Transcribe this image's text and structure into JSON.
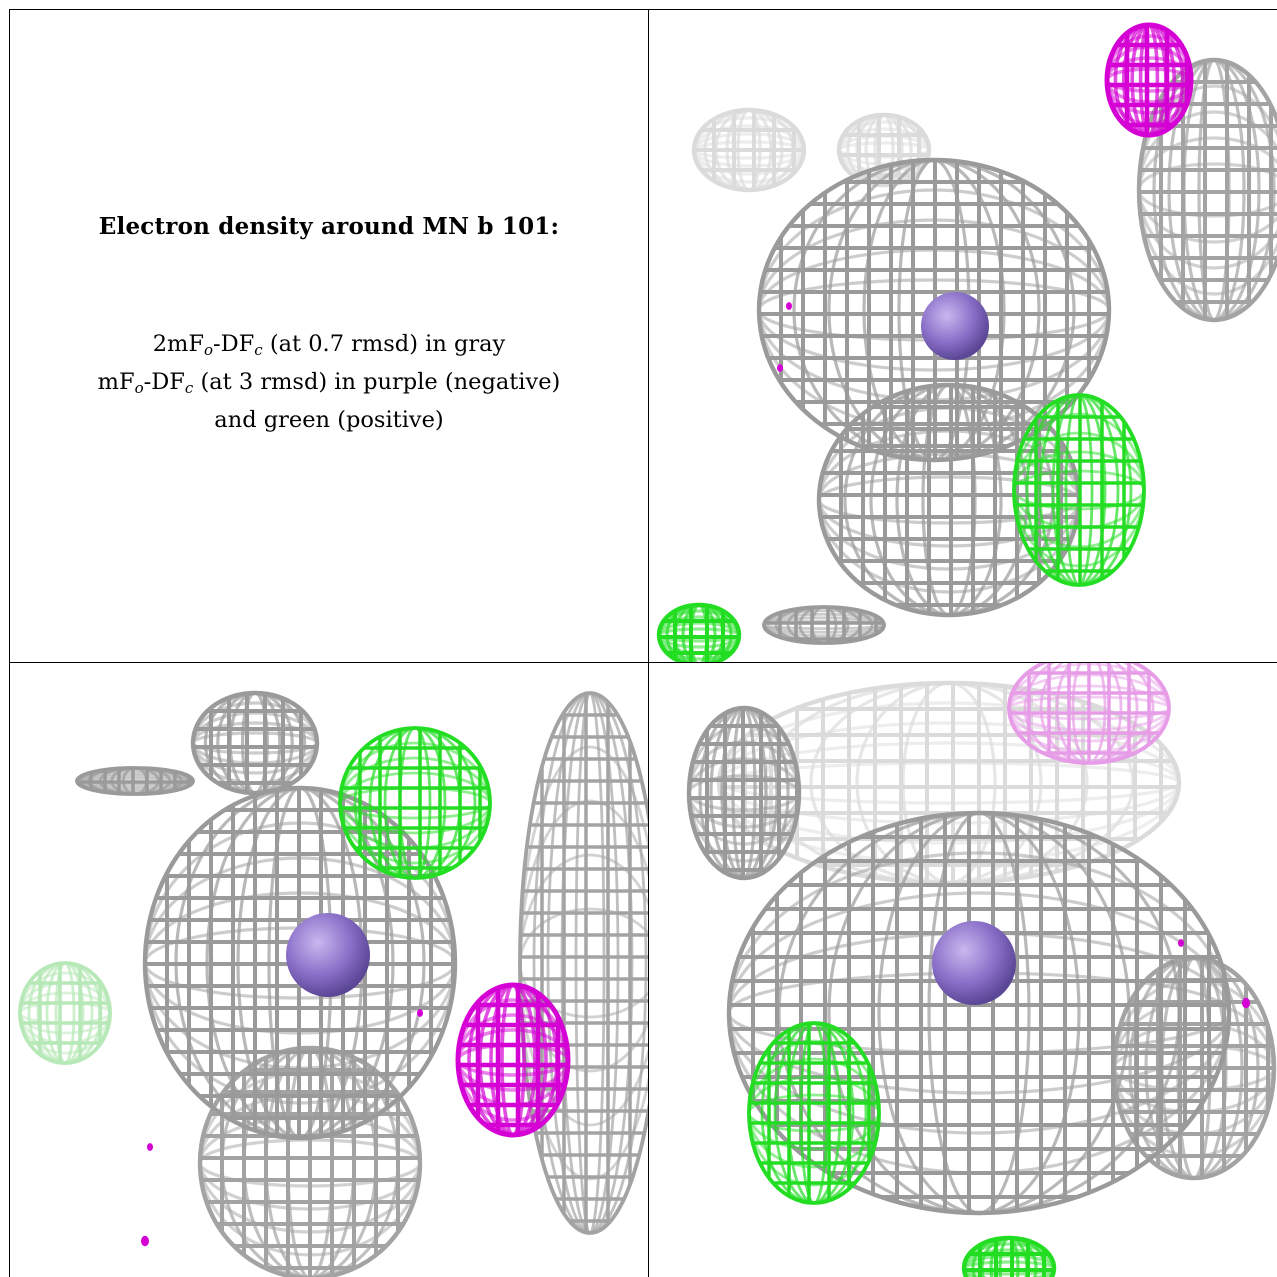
{
  "caption": {
    "title": "Electron density around MN b 101:",
    "line1": {
      "pre": "2mF",
      "sub1": "o",
      "mid": "-DF",
      "sub2": "c",
      "post": " (at 0.7 rmsd) in gray"
    },
    "line2": {
      "pre": "mF",
      "sub1": "o",
      "mid": "-DF",
      "sub2": "c",
      "post": " (at 3 rmsd) in purple (negative)"
    },
    "line3": "and green (positive)"
  },
  "colors": {
    "gray_mesh": "#9a9a9a",
    "gray_light": "#d8d8d8",
    "negative_density": "#d400d4",
    "positive_density": "#22dd22",
    "mn_atom": "#8a6fc8"
  },
  "panels": [
    {
      "view": "top-right",
      "atom": "MN b 101"
    },
    {
      "view": "bottom-left",
      "atom": "MN b 101"
    },
    {
      "view": "bottom-right",
      "atom": "MN b 101"
    }
  ]
}
